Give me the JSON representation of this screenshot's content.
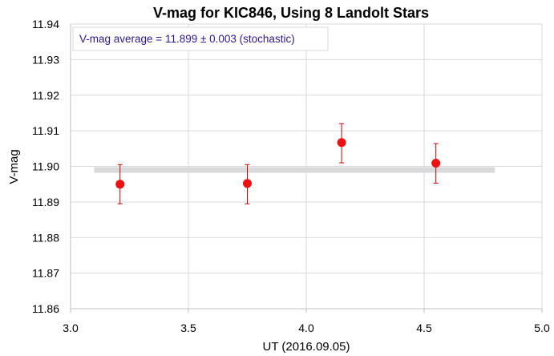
{
  "chart_data": {
    "type": "scatter",
    "title": "V-mag for KIC846, Using 8 Landolt Stars",
    "xlabel": "UT (2016.09.05)",
    "ylabel": "V-mag",
    "xlim": [
      3.0,
      5.0
    ],
    "ylim": [
      11.86,
      11.94
    ],
    "x_ticks": [
      "3.0",
      "3.5",
      "4.0",
      "4.5",
      "5.0"
    ],
    "y_ticks": [
      "11.86",
      "11.87",
      "11.88",
      "11.89",
      "11.90",
      "11.91",
      "11.92",
      "11.93",
      "11.94"
    ],
    "grid": true,
    "annotation": "V-mag average = 11.899 ± 0.003 (stochastic)",
    "average_line": {
      "y": 11.899,
      "x_start": 3.1,
      "x_end": 4.8
    },
    "series": [
      {
        "points": [
          {
            "x": 3.21,
            "y": 11.895,
            "err_low": 11.8895,
            "err_high": 11.9005
          },
          {
            "x": 3.75,
            "y": 11.8952,
            "err_low": 11.8895,
            "err_high": 11.9005
          },
          {
            "x": 4.15,
            "y": 11.9067,
            "err_low": 11.901,
            "err_high": 11.912
          },
          {
            "x": 4.55,
            "y": 11.9009,
            "err_low": 11.8953,
            "err_high": 11.9064
          }
        ]
      }
    ],
    "colors": {
      "marker": "#ee1111",
      "errorbar": "#c00000",
      "average_line": "#d9d9d9",
      "grid": "#d9d9d9",
      "axis": "#bfbfbf",
      "annotation_text": "#2b1a8a"
    }
  }
}
